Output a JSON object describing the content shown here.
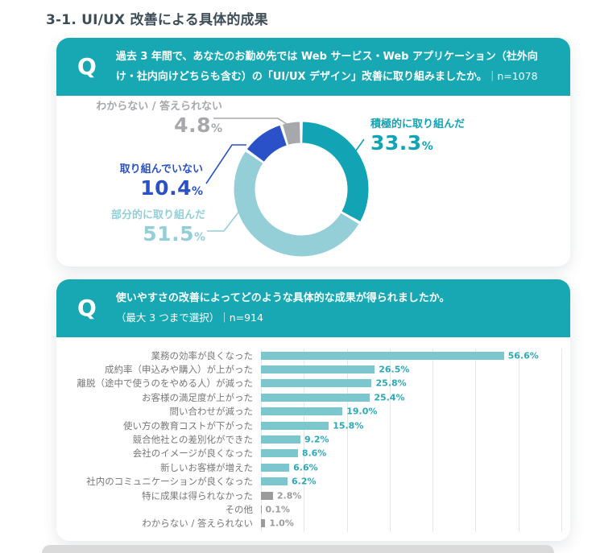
{
  "page": {
    "title": "3-1. UI/UX 改善による具体的成果"
  },
  "colors": {
    "header_teal": "#17A8B4",
    "title_text": "#3E4E58",
    "gridline": "#E6E6E6"
  },
  "cards": [
    {
      "q_label": "Q",
      "question_main": "過去 3 年間で、あなたのお勤め先では Web サービス・Web アプリケーション（社外向け・社内向けどちらも含む）の「UI/UX デザイン」改善に取り組みましたか。",
      "sample_note": "｜n=1078"
    },
    {
      "q_label": "Q",
      "question_main": "使いやすさの改善によってどのような具体的な成果が得られましたか。",
      "question_sub": "（最大 3 つまで選択）｜n=914"
    }
  ],
  "chart_data": [
    {
      "type": "pie",
      "subtype": "donut",
      "start_angle": "top",
      "direction": "clockwise",
      "segments": [
        {
          "label": "積極的に取り組んだ",
          "value": 33.3,
          "value_label": "33.3%",
          "color": "#12A4B4"
        },
        {
          "label": "部分的に取り組んだ",
          "value": 51.5,
          "value_label": "51.5%",
          "color": "#94CFD8"
        },
        {
          "label": "取り組んでいない",
          "value": 10.4,
          "value_label": "10.4%",
          "color": "#2A51C8"
        },
        {
          "label": "わからない / 答えられない",
          "value": 4.8,
          "value_label": "4.8%",
          "color": "#A6A8AB"
        }
      ]
    },
    {
      "type": "bar",
      "orientation": "horizontal",
      "xlim": [
        0,
        70
      ],
      "gridline_step": 10,
      "bar_color": "#7CC6CE",
      "value_color": "#2AA9B9",
      "muted_bar_color": "#9B9B9B",
      "muted_value_color": "#9B9B9B",
      "muted_from_index": 10,
      "categories": [
        "業務の効率が良くなった",
        "成約率（申込みや購入）が上がった",
        "離脱（途中で使うのをやめる人）が減った",
        "お客様の満足度が上がった",
        "問い合わせが減った",
        "使い方の教育コストが下がった",
        "競合他社との差別化ができた",
        "会社のイメージが良くなった",
        "新しいお客様が増えた",
        "社内のコミュニケーションが良くなった",
        "特に成果は得られなかった",
        "その他",
        "わからない / 答えられない"
      ],
      "values": [
        56.6,
        26.5,
        25.8,
        25.4,
        19.0,
        15.8,
        9.2,
        8.6,
        6.6,
        6.2,
        2.8,
        0.1,
        1.0
      ],
      "value_labels": [
        "56.6%",
        "26.5%",
        "25.8%",
        "25.4%",
        "19.0%",
        "15.8%",
        "9.2%",
        "8.6%",
        "6.6%",
        "6.2%",
        "2.8%",
        "0.1%",
        "1.0%"
      ]
    }
  ]
}
